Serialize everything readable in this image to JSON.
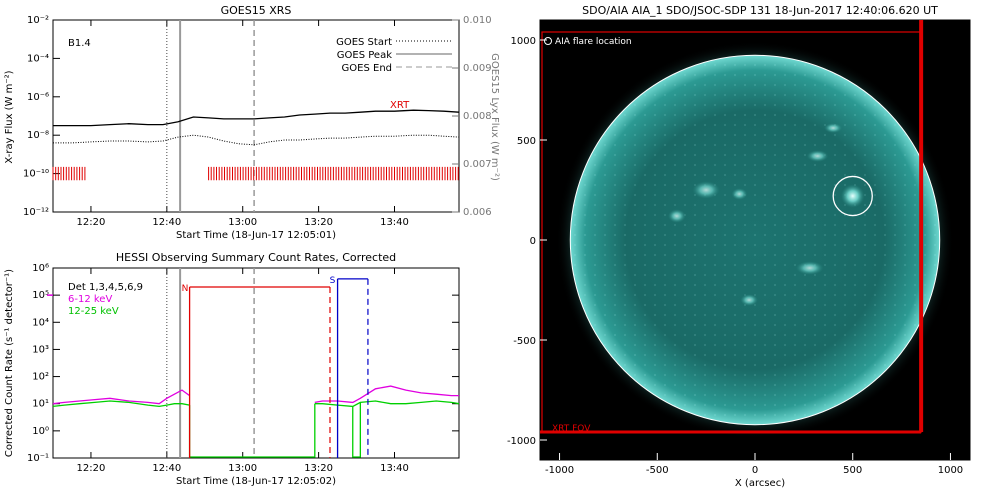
{
  "chart_data": [
    {
      "type": "line",
      "title": "GOES15 XRS",
      "xlabel": "Start Time (18-Jun-17 12:05:01)",
      "ylabel": "X-ray Flux (W m⁻²)",
      "ylabel_right": "GOES15 Lyx Flux (W m⁻²)",
      "xticks": [
        "12:20",
        "12:40",
        "13:00",
        "13:20",
        "13:40"
      ],
      "xlim_min": [
        5,
        55
      ],
      "yticks": [
        "10⁻¹²",
        "10⁻¹⁰",
        "10⁻⁸",
        "10⁻⁶",
        "10⁻⁴",
        "10⁻²"
      ],
      "ylim_log": [
        -12,
        -2
      ],
      "yticks_right": [
        "0.006",
        "0.007",
        "0.008",
        "0.009",
        "0.010"
      ],
      "ylim_right": [
        0.006,
        0.01
      ],
      "class_label": "B1.4",
      "legend": [
        "GOES Start",
        "GOES Peak",
        "GOES End"
      ],
      "legend_position": "top-right",
      "annotation": "XRT",
      "markers_min": {
        "start": 35,
        "peak": 38.5,
        "end": 58
      },
      "series": [
        {
          "name": "",
          "color": "#000000",
          "style": "solid",
          "x": [
            5,
            10,
            15,
            20,
            25,
            30,
            34,
            38,
            42,
            46,
            50,
            54,
            58,
            62,
            66,
            70,
            74,
            78,
            82,
            86,
            90,
            95,
            100,
            104,
            108,
            112
          ],
          "y": [
            -7.5,
            -7.5,
            -7.5,
            -7.45,
            -7.4,
            -7.45,
            -7.45,
            -7.3,
            -7.05,
            -7.1,
            -7.15,
            -7.15,
            -7.15,
            -7.1,
            -7.05,
            -6.95,
            -6.9,
            -6.85,
            -6.85,
            -6.8,
            -6.75,
            -6.75,
            -6.7,
            -6.72,
            -6.75,
            -6.8
          ]
        },
        {
          "name": "",
          "color": "#000000",
          "style": "dotted",
          "x": [
            5,
            10,
            15,
            20,
            25,
            30,
            34,
            38,
            42,
            46,
            50,
            54,
            58,
            62,
            66,
            70,
            74,
            78,
            82,
            86,
            90,
            95,
            100,
            104,
            108,
            112
          ],
          "y": [
            -8.4,
            -8.4,
            -8.35,
            -8.3,
            -8.3,
            -8.35,
            -8.3,
            -8.1,
            -8.0,
            -8.1,
            -8.3,
            -8.45,
            -8.5,
            -8.35,
            -8.25,
            -8.25,
            -8.2,
            -8.15,
            -8.15,
            -8.1,
            -8.05,
            -8.05,
            -8.0,
            -8.0,
            -8.05,
            -8.1
          ]
        }
      ],
      "xrt_coverage": [
        [
          5,
          14
        ],
        [
          46,
          112
        ]
      ]
    },
    {
      "type": "line",
      "title": "HESSI Observing Summary Count Rates, Corrected",
      "xlabel": "Start Time (18-Jun-17 12:05:02)",
      "ylabel": "Corrected Count Rate (s⁻¹ detector⁻¹)",
      "xticks": [
        "12:20",
        "12:40",
        "13:00",
        "13:20",
        "13:40"
      ],
      "xlim_min": [
        5,
        55
      ],
      "yticks": [
        "10⁻¹",
        "10⁰",
        "10¹",
        "10²",
        "10³",
        "10⁴",
        "10⁵",
        "10⁶"
      ],
      "ylim_log": [
        -1,
        6
      ],
      "legend": [
        "Det 1,3,4,5,6,9",
        "6-12 keV",
        "12-25 keV"
      ],
      "legend_colors": [
        "#000000",
        "#e000e0",
        "#00d000"
      ],
      "legend_position": "top-left",
      "flags": [
        {
          "label": "N",
          "color": "#e00000",
          "start_min": 41,
          "end_min": 78
        },
        {
          "label": "S",
          "color": "#0000c8",
          "start_min": 80,
          "end_min": 88
        }
      ],
      "series": [
        {
          "name": "6-12 keV",
          "color": "#e000e0",
          "x": [
            5,
            8,
            12,
            16,
            20,
            25,
            30,
            33,
            35,
            37,
            39,
            41,
            74,
            76,
            80,
            84,
            86,
            90,
            94,
            98,
            102,
            106,
            110,
            112
          ],
          "y": [
            1.0,
            1.05,
            1.1,
            1.15,
            1.2,
            1.1,
            1.05,
            1.0,
            1.2,
            1.35,
            1.5,
            1.3,
            1.05,
            1.1,
            1.1,
            1.05,
            1.2,
            1.55,
            1.65,
            1.5,
            1.4,
            1.35,
            1.3,
            1.3
          ]
        },
        {
          "name": "12-25 keV",
          "color": "#00d000",
          "x": [
            5,
            8,
            12,
            16,
            20,
            25,
            30,
            33,
            35,
            37,
            39,
            41,
            74,
            76,
            80,
            84,
            86,
            90,
            94,
            98,
            102,
            106,
            110,
            112
          ],
          "y": [
            0.9,
            0.95,
            1.0,
            1.05,
            1.1,
            1.05,
            0.95,
            0.9,
            0.95,
            1.0,
            1.0,
            0.95,
            1.0,
            1.0,
            0.95,
            0.9,
            1.05,
            1.1,
            1.0,
            1.0,
            1.05,
            1.1,
            1.05,
            1.0
          ]
        }
      ]
    },
    {
      "type": "scatter",
      "title": "SDO/AIA AIA_1 SDO/JSOC-SDP 131 18-Jun-2017 12:40:06.620 UT",
      "xlabel": "X (arcsec)",
      "ylabel": "",
      "xticks": [
        "-1000",
        "-500",
        "0",
        "500",
        "1000"
      ],
      "yticks": [
        "-1000",
        "-500",
        "0",
        "500",
        "1000"
      ],
      "xlim": [
        -1100,
        1100
      ],
      "ylim": [
        -1100,
        1100
      ],
      "legend": [
        "AIA flare location"
      ],
      "legend_position": "top-left",
      "fov_label": "XRT FOV",
      "solar_radius_arcsec": 945,
      "flare_location": {
        "x": 500,
        "y": 220,
        "r": 100
      },
      "xrt_fov": {
        "x": [
          -1100,
          850
        ],
        "y": [
          -960,
          1100
        ]
      },
      "disk_color": "#1a6b67",
      "limb_color": "#8ef0e8"
    }
  ]
}
